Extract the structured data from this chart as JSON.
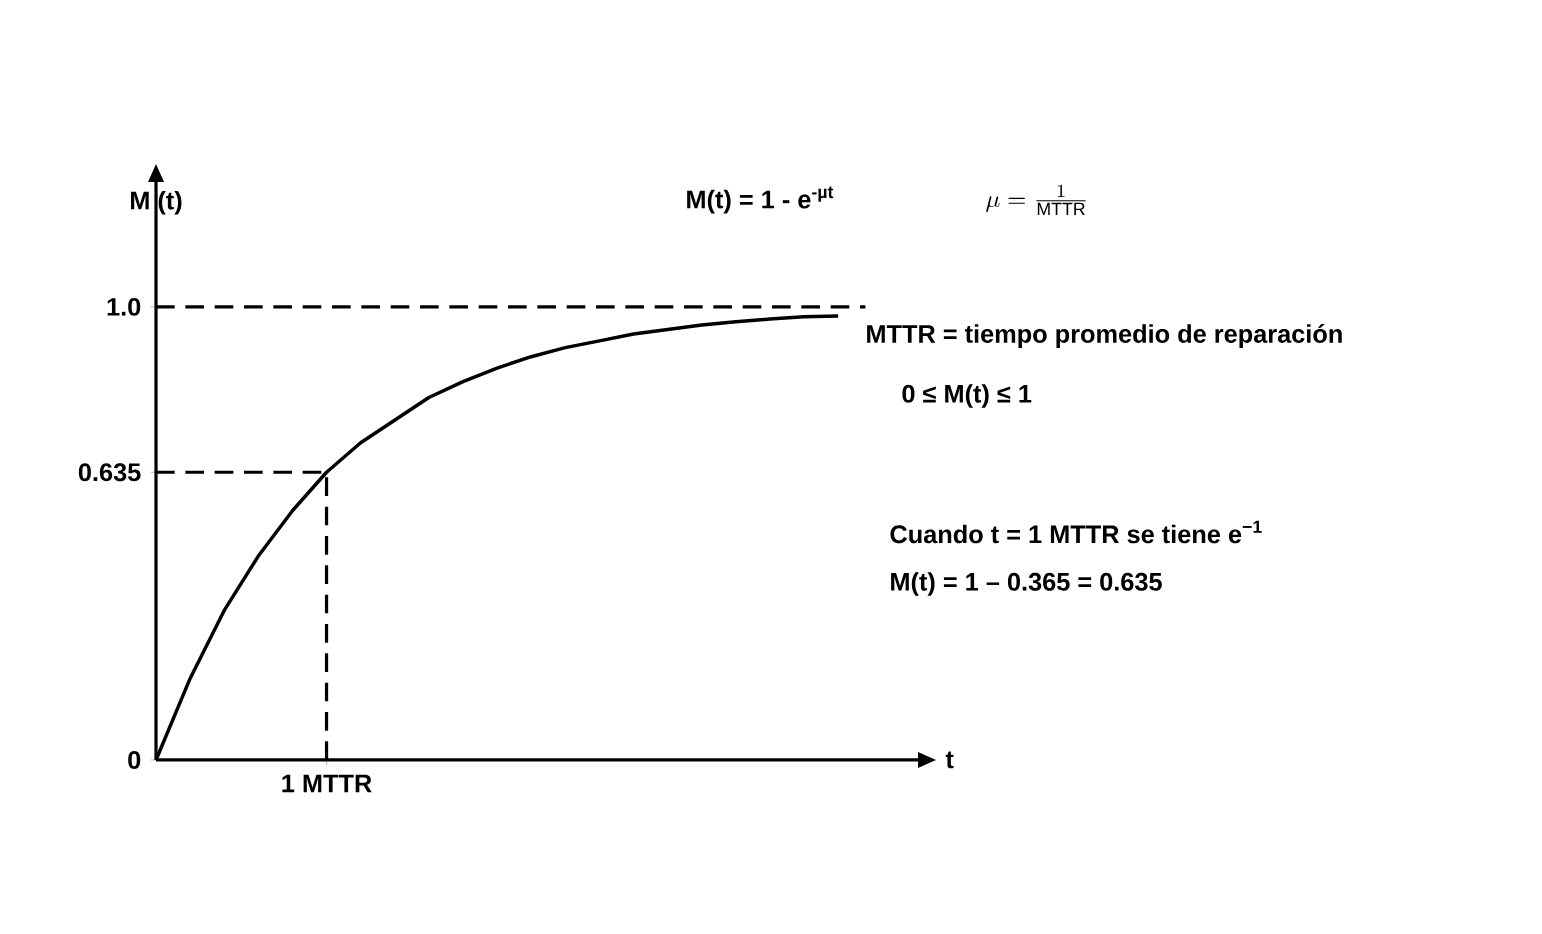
{
  "chart_data": {
    "type": "line",
    "xlabel": "t",
    "ylabel": "M (t)",
    "categories": [
      null,
      null,
      null,
      null,
      null,
      "1 MTTR",
      null,
      null,
      null,
      null,
      null,
      null,
      null,
      null,
      null,
      null,
      null,
      null,
      null,
      null,
      null
    ],
    "ylim": [
      0,
      1.28
    ],
    "yticks": [
      {
        "value": 0,
        "label": "0"
      },
      {
        "value": 0.635,
        "label": "0.635"
      },
      {
        "value": 1,
        "label": "1.0"
      }
    ],
    "series": [
      {
        "color": "#000000",
        "values": [
          0,
          0.18,
          0.33,
          0.45,
          0.55,
          0.635,
          0.7,
          0.75,
          0.8,
          0.835,
          0.865,
          0.89,
          0.91,
          0.925,
          0.94,
          0.95,
          0.96,
          0.967,
          0.973,
          0.978,
          0.98
        ]
      }
    ],
    "ref_lines": [
      {
        "axis": "y",
        "value": 1,
        "line_style": "dashed",
        "color": "#000000"
      },
      {
        "axis": "y",
        "value": 0.635,
        "line_style": "dashed",
        "color": "#000000"
      },
      {
        "axis": "x",
        "value": "1 MTTR",
        "line_style": "dashed",
        "color": "#000000"
      }
    ],
    "grid": false,
    "marker": "none",
    "line_style": "solid",
    "annotations": [
      "M(t) = 1 - e$^{-µt}$",
      "\\mu = \\frac{1}{\\mathrm{MTTR}}",
      "MTTR = tiempo promedio de reparación",
      "0 ≤ M(t) ≤ 1",
      "Cuando t = 1 MTTR se tiene  e$^{−1}$",
      "M(t) = 1 – 0.365 = 0.635"
    ]
  }
}
